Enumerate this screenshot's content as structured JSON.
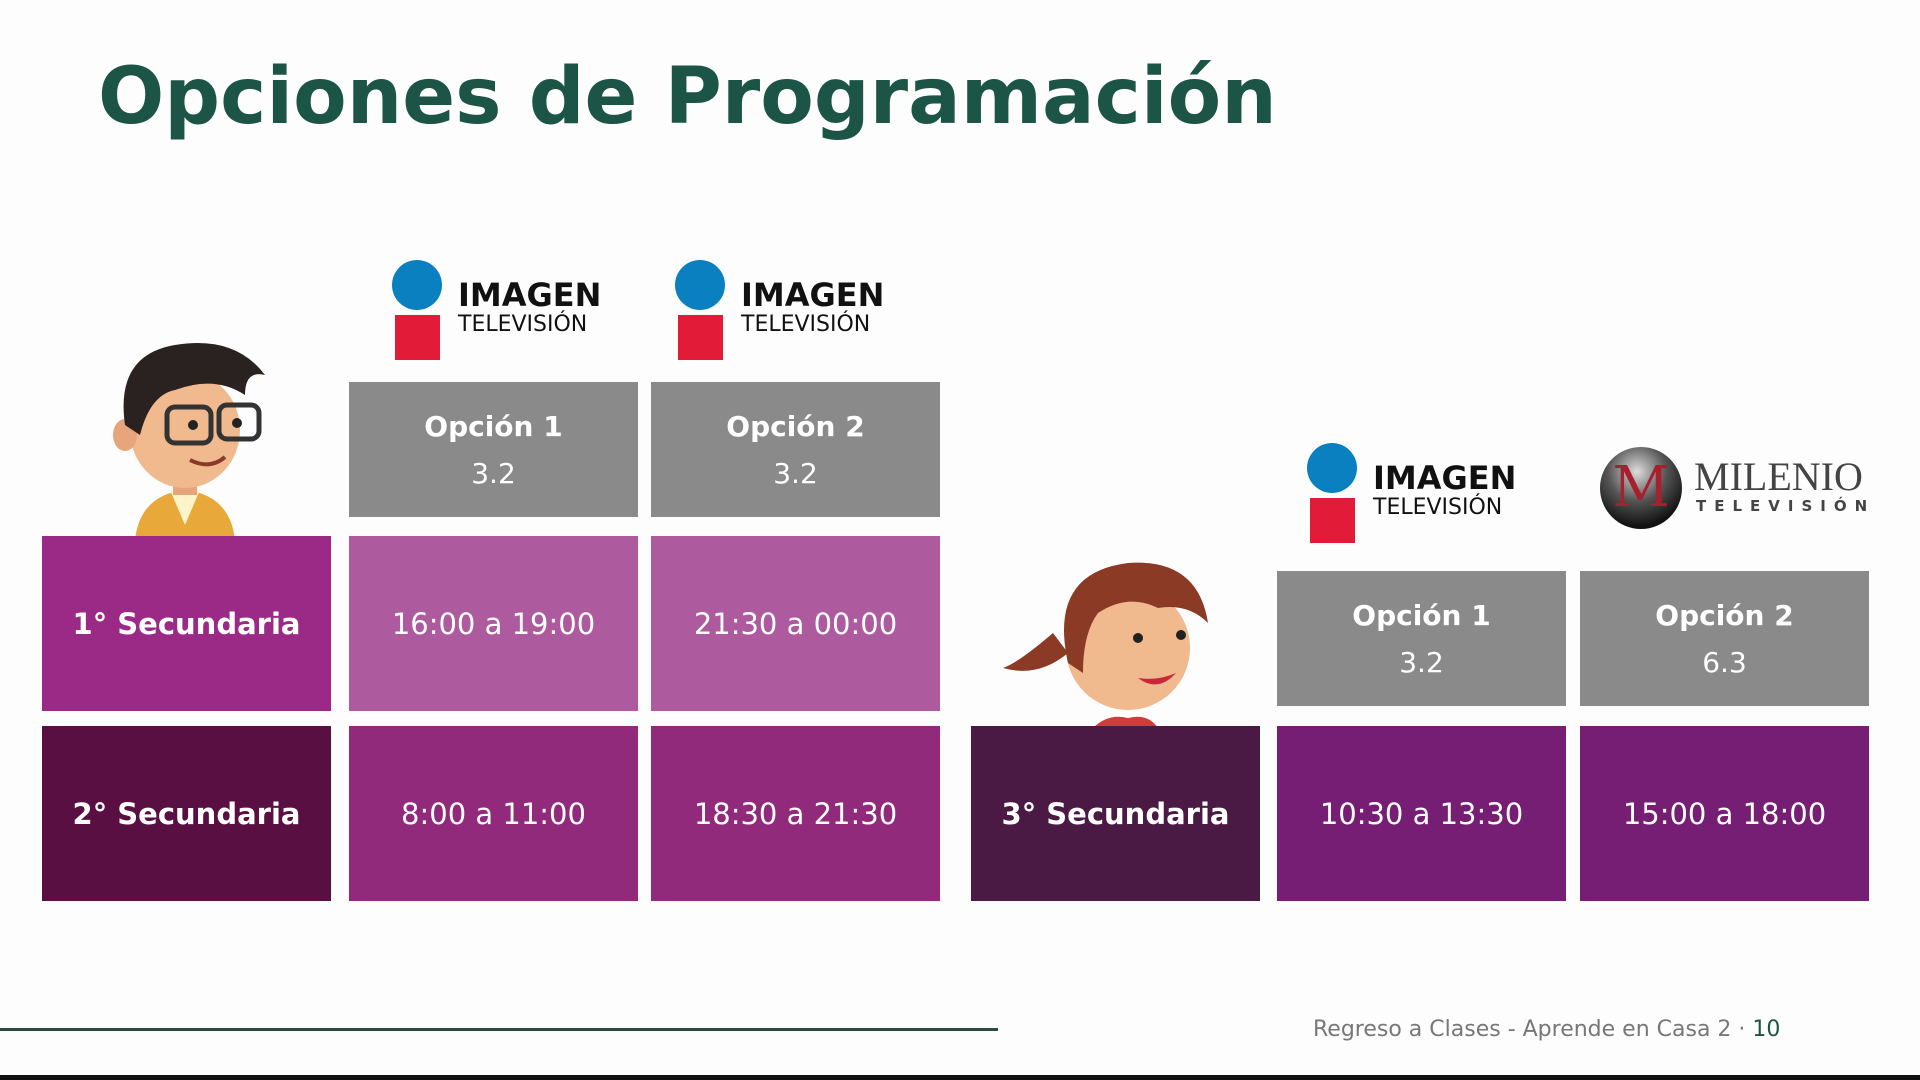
{
  "title": "Opciones de Programación",
  "logos": {
    "imagen": {
      "line1": "IMAGEN",
      "line2": "TELEVISIÓN"
    },
    "milenio": {
      "mark": "M",
      "line1": "MILENIO",
      "line2": "TELEVISIÓN"
    }
  },
  "left_table": {
    "headers": [
      {
        "label": "Opción 1",
        "channel": "3.2"
      },
      {
        "label": "Opción 2",
        "channel": "3.2"
      }
    ],
    "rows": [
      {
        "grade": "1° Secundaria",
        "times": [
          "16:00 a 19:00",
          "21:30 a 00:00"
        ]
      },
      {
        "grade": "2° Secundaria",
        "times": [
          "8:00 a 11:00",
          "18:30 a 21:30"
        ]
      }
    ]
  },
  "right_table": {
    "headers": [
      {
        "label": "Opción 1",
        "channel": "3.2"
      },
      {
        "label": "Opción 2",
        "channel": "6.3"
      }
    ],
    "rows": [
      {
        "grade": "3° Secundaria",
        "times": [
          "10:30 a 13:30",
          "15:00 a 18:00"
        ]
      }
    ]
  },
  "footer": {
    "text": "Regreso a Clases - Aprende en Casa 2 ·",
    "page": "10"
  },
  "colors": {
    "title": "#1c5545",
    "header": "#8a8a8a",
    "row1_grade": "#9b2a86",
    "row1_cell": "#ad5a9e",
    "row2_grade": "#5a0f42",
    "row2_cell": "#922a7c",
    "row3_grade": "#4a1a45",
    "row3_cell": "#751e73"
  }
}
